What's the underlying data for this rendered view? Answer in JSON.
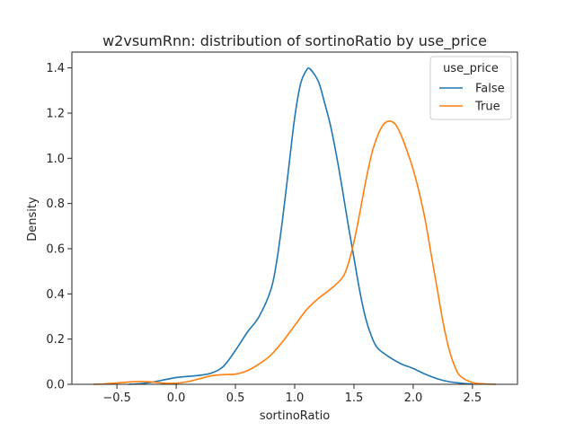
{
  "chart_data": {
    "type": "line",
    "title": "w2vsumRnn: distribution of sortinoRatio by use_price",
    "xlabel": "sortinoRatio",
    "ylabel": "Density",
    "xlim": [
      -0.88,
      2.88
    ],
    "ylim": [
      0,
      1.47
    ],
    "xticks": [
      -0.5,
      0.0,
      0.5,
      1.0,
      1.5,
      2.0,
      2.5
    ],
    "xtick_labels": [
      "−0.5",
      "0.0",
      "0.5",
      "1.0",
      "1.5",
      "2.0",
      "2.5"
    ],
    "yticks": [
      0.0,
      0.2,
      0.4,
      0.6,
      0.8,
      1.0,
      1.2,
      1.4
    ],
    "ytick_labels": [
      "0.0",
      "0.2",
      "0.4",
      "0.6",
      "0.8",
      "1.0",
      "1.2",
      "1.4"
    ],
    "grid": false,
    "legend": {
      "title": "use_price",
      "placement": "top-right"
    },
    "series": [
      {
        "name": "False",
        "color": "#1f77b4",
        "x": [
          -0.4,
          -0.3,
          -0.2,
          -0.1,
          0.0,
          0.1,
          0.2,
          0.3,
          0.4,
          0.5,
          0.6,
          0.7,
          0.8,
          0.85,
          0.9,
          0.95,
          1.0,
          1.05,
          1.1,
          1.13,
          1.2,
          1.25,
          1.3,
          1.35,
          1.4,
          1.45,
          1.5,
          1.55,
          1.6,
          1.65,
          1.7,
          1.8,
          1.9,
          2.0,
          2.1,
          2.2,
          2.3,
          2.4,
          2.5
        ],
        "values": [
          0.0,
          0.003,
          0.01,
          0.02,
          0.03,
          0.035,
          0.04,
          0.05,
          0.08,
          0.15,
          0.23,
          0.3,
          0.42,
          0.55,
          0.74,
          0.96,
          1.18,
          1.33,
          1.39,
          1.395,
          1.34,
          1.25,
          1.15,
          1.02,
          0.87,
          0.71,
          0.56,
          0.41,
          0.29,
          0.21,
          0.16,
          0.12,
          0.09,
          0.07,
          0.045,
          0.025,
          0.012,
          0.005,
          0.001
        ]
      },
      {
        "name": "True",
        "color": "#ff7f0e",
        "x": [
          -0.7,
          -0.6,
          -0.5,
          -0.4,
          -0.3,
          -0.2,
          -0.1,
          0.0,
          0.1,
          0.2,
          0.3,
          0.4,
          0.5,
          0.6,
          0.7,
          0.8,
          0.9,
          1.0,
          1.1,
          1.2,
          1.3,
          1.4,
          1.45,
          1.5,
          1.55,
          1.6,
          1.65,
          1.7,
          1.75,
          1.8,
          1.85,
          1.9,
          1.95,
          2.0,
          2.05,
          2.1,
          2.15,
          2.2,
          2.25,
          2.3,
          2.35,
          2.4,
          2.5,
          2.6,
          2.7
        ],
        "values": [
          0.0,
          0.002,
          0.006,
          0.01,
          0.012,
          0.01,
          0.005,
          0.005,
          0.012,
          0.025,
          0.038,
          0.043,
          0.045,
          0.06,
          0.09,
          0.13,
          0.19,
          0.26,
          0.33,
          0.38,
          0.42,
          0.47,
          0.53,
          0.63,
          0.76,
          0.9,
          1.02,
          1.1,
          1.15,
          1.165,
          1.15,
          1.1,
          1.03,
          0.95,
          0.85,
          0.73,
          0.58,
          0.43,
          0.28,
          0.16,
          0.08,
          0.035,
          0.008,
          0.002,
          0.0
        ]
      }
    ]
  }
}
